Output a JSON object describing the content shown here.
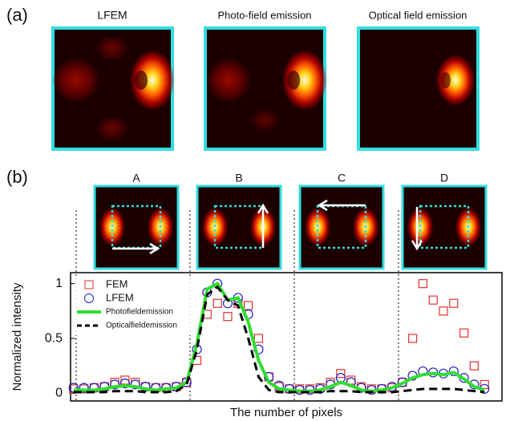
{
  "figure": {
    "panel_a": "(a)",
    "panel_b": "(b)",
    "image_titles": [
      "LFEM",
      "Photo-field emission",
      "Optical field emission"
    ],
    "position_labels": [
      "A",
      "B",
      "C",
      "D"
    ]
  },
  "chart_data": {
    "type": "line",
    "x_label": "The number of pixels",
    "y_label": "Normalized intensity",
    "x": [
      0,
      1,
      2,
      3,
      4,
      5,
      6,
      7,
      8,
      9,
      10,
      11,
      12,
      13,
      14,
      15,
      16,
      17,
      18,
      19,
      20,
      21,
      22,
      23,
      24,
      25,
      26,
      27,
      28,
      29,
      30,
      31,
      32,
      33,
      34,
      35,
      36,
      37,
      38,
      39,
      40
    ],
    "xlim": [
      -0.3,
      41.7
    ],
    "ylim": [
      -0.07,
      1.1
    ],
    "yticks": [
      0,
      0.5,
      1
    ],
    "legend": "upper left",
    "series": [
      {
        "name": "FEM",
        "color": "#e03030",
        "style": "square",
        "values": [
          0.04,
          0.04,
          0.05,
          0.06,
          0.1,
          0.12,
          0.1,
          0.06,
          0.05,
          0.05,
          0.06,
          0.1,
          0.3,
          0.72,
          0.82,
          0.7,
          0.82,
          0.8,
          0.5,
          0.15,
          0.06,
          0.04,
          0.04,
          0.04,
          0.05,
          0.1,
          0.18,
          0.12,
          0.06,
          0.04,
          0.04,
          0.05,
          0.1,
          0.5,
          1.0,
          0.85,
          0.75,
          0.82,
          0.55,
          0.25,
          0.08
        ]
      },
      {
        "name": "LFEM",
        "color": "#2020c0",
        "style": "circle",
        "values": [
          0.05,
          0.05,
          0.05,
          0.06,
          0.08,
          0.09,
          0.08,
          0.06,
          0.05,
          0.05,
          0.06,
          0.1,
          0.4,
          0.92,
          1.0,
          0.82,
          0.87,
          0.72,
          0.4,
          0.15,
          0.07,
          0.04,
          0.03,
          0.03,
          0.04,
          0.08,
          0.14,
          0.1,
          0.05,
          0.03,
          0.04,
          0.06,
          0.1,
          0.16,
          0.2,
          0.19,
          0.18,
          0.2,
          0.14,
          0.08,
          0.04
        ]
      },
      {
        "name": "Photofieldemission",
        "color": "#30dd30",
        "style": "solid",
        "values": [
          0.03,
          0.03,
          0.03,
          0.04,
          0.06,
          0.07,
          0.06,
          0.04,
          0.03,
          0.04,
          0.05,
          0.1,
          0.45,
          0.95,
          1.0,
          0.85,
          0.87,
          0.65,
          0.3,
          0.1,
          0.04,
          0.03,
          0.02,
          0.02,
          0.03,
          0.06,
          0.1,
          0.07,
          0.03,
          0.02,
          0.03,
          0.05,
          0.09,
          0.14,
          0.17,
          0.18,
          0.17,
          0.19,
          0.13,
          0.06,
          0.03
        ]
      },
      {
        "name": "Opticalfieldemission",
        "color": "#000000",
        "style": "dashed",
        "values": [
          0.01,
          0.01,
          0.01,
          0.01,
          0.02,
          0.02,
          0.02,
          0.01,
          0.01,
          0.01,
          0.02,
          0.08,
          0.4,
          0.9,
          0.97,
          0.85,
          0.8,
          0.5,
          0.15,
          0.03,
          0.01,
          0.01,
          0.01,
          0.01,
          0.01,
          0.02,
          0.02,
          0.02,
          0.01,
          0.01,
          0.01,
          0.01,
          0.02,
          0.03,
          0.04,
          0.04,
          0.04,
          0.04,
          0.03,
          0.02,
          0.01
        ]
      }
    ]
  }
}
